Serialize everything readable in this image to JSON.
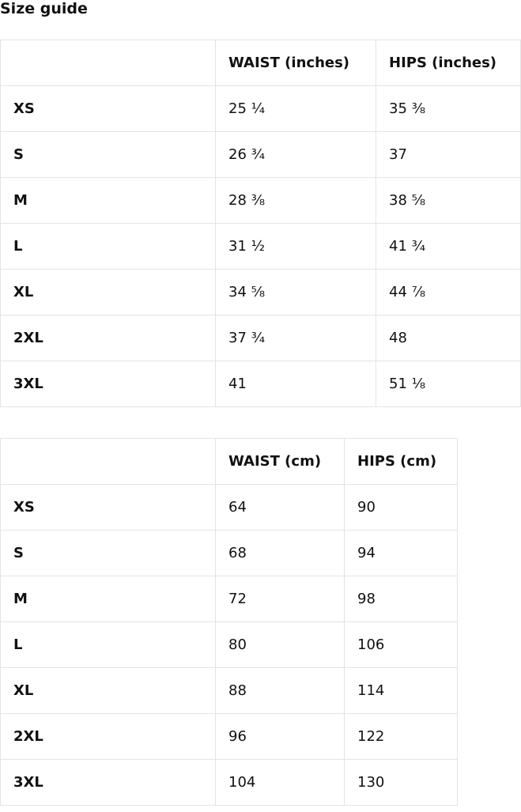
{
  "title": "Size guide",
  "tables": [
    {
      "headers": [
        "",
        "WAIST (inches)",
        "HIPS (inches)"
      ],
      "rows": [
        [
          "XS",
          "25 ¼",
          "35 ⅜"
        ],
        [
          "S",
          "26 ¾",
          "37"
        ],
        [
          "M",
          "28 ⅜",
          "38 ⅝"
        ],
        [
          "L",
          "31 ½",
          "41 ¾"
        ],
        [
          "XL",
          "34 ⅝",
          "44 ⅞"
        ],
        [
          "2XL",
          "37 ¾",
          "48"
        ],
        [
          "3XL",
          "41",
          "51 ⅛"
        ]
      ]
    },
    {
      "headers": [
        "",
        "WAIST (cm)",
        "HIPS (cm)"
      ],
      "rows": [
        [
          "XS",
          "64",
          "90"
        ],
        [
          "S",
          "68",
          "94"
        ],
        [
          "M",
          "72",
          "98"
        ],
        [
          "L",
          "80",
          "106"
        ],
        [
          "XL",
          "88",
          "114"
        ],
        [
          "2XL",
          "96",
          "122"
        ],
        [
          "3XL",
          "104",
          "130"
        ]
      ]
    }
  ]
}
